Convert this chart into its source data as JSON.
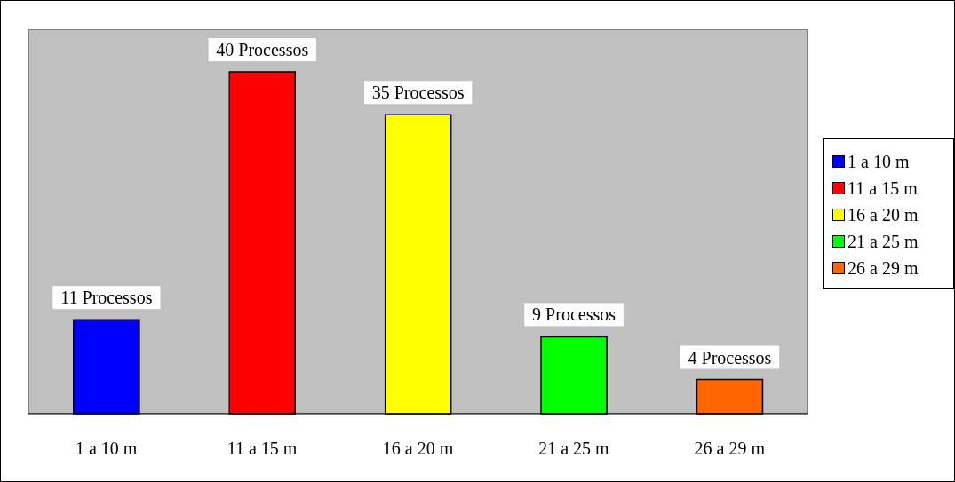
{
  "chart_data": {
    "type": "bar",
    "categories": [
      "1 a 10 m",
      "11 a 15 m",
      "16 a 20 m",
      "21 a 25 m",
      "26 a 29 m"
    ],
    "series": [
      {
        "name": "1 a 10 m",
        "color": "#0000ff",
        "values": [
          11,
          null,
          null,
          null,
          null
        ],
        "value_labels": [
          "11 Processos",
          null,
          null,
          null,
          null
        ]
      },
      {
        "name": "11 a 15 m",
        "color": "#ff0000",
        "values": [
          null,
          40,
          null,
          null,
          null
        ],
        "value_labels": [
          null,
          "40 Processos",
          null,
          null,
          null
        ]
      },
      {
        "name": "16 a 20 m",
        "color": "#ffff00",
        "values": [
          null,
          null,
          35,
          null,
          null
        ],
        "value_labels": [
          null,
          null,
          "35 Processos",
          null,
          null
        ]
      },
      {
        "name": "21 a 25 m",
        "color": "#00ff00",
        "values": [
          null,
          null,
          null,
          9,
          null
        ],
        "value_labels": [
          null,
          null,
          null,
          "9 Processos",
          null
        ]
      },
      {
        "name": "26 a 29 m",
        "color": "#ff6600",
        "values": [
          null,
          null,
          null,
          null,
          4
        ],
        "value_labels": [
          null,
          null,
          null,
          null,
          "4 Processos"
        ]
      }
    ],
    "legend": "right"
  }
}
